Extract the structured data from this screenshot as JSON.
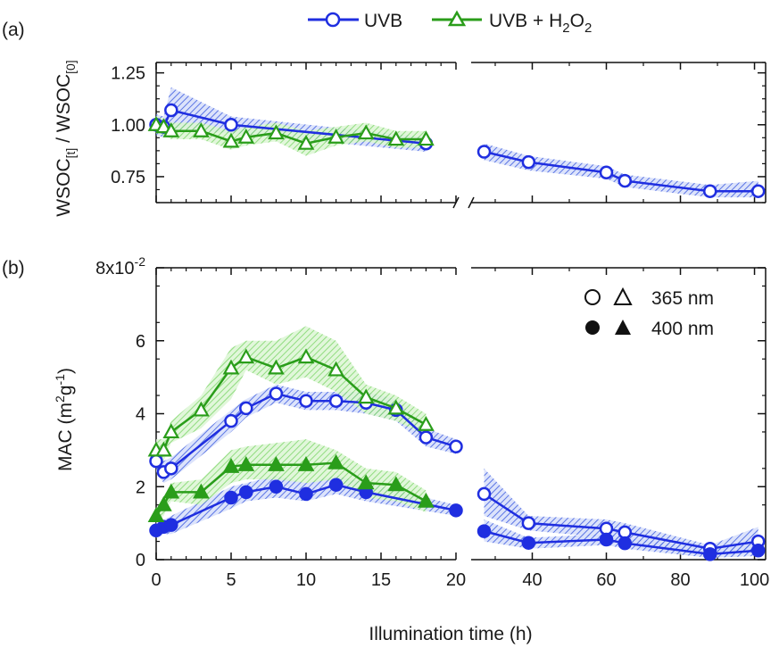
{
  "chart_data": [
    {
      "panel": "(a)",
      "type": "line",
      "ylabel": "WSOC[t] / WSOC[0]",
      "ylim": [
        0.625,
        1.3
      ],
      "yticks": [
        "0.75",
        "1.00",
        "1.25"
      ],
      "y_tick_values": [
        0.75,
        1.0,
        1.25
      ],
      "x_broken_axis": {
        "segment1": [
          0,
          20
        ],
        "segment2": [
          23.5,
          103
        ]
      },
      "series": [
        {
          "name": "UVB",
          "color": "#1f2ee0",
          "marker": "circle-open",
          "x": [
            0,
            0.5,
            1,
            5,
            18,
            27,
            39,
            60,
            65,
            88,
            101
          ],
          "y": [
            1.0,
            0.99,
            1.07,
            1.0,
            0.91,
            0.87,
            0.82,
            0.77,
            0.73,
            0.68,
            0.68
          ],
          "band": [
            [
              0.95,
              1.05
            ],
            [
              0.94,
              1.04
            ],
            [
              0.97,
              1.18
            ],
            [
              0.96,
              1.04
            ],
            [
              0.87,
              0.94
            ],
            [
              0.83,
              0.91
            ],
            [
              0.78,
              0.85
            ],
            [
              0.74,
              0.8
            ],
            [
              0.7,
              0.76
            ],
            [
              0.65,
              0.71
            ],
            [
              0.65,
              0.73
            ]
          ]
        },
        {
          "name": "UVB + H2O2",
          "color": "#2a9d1a",
          "marker": "triangle-open",
          "x": [
            0,
            0.5,
            1,
            3,
            5,
            6,
            8,
            10,
            12,
            14,
            16,
            18
          ],
          "y": [
            1.0,
            0.99,
            0.97,
            0.97,
            0.92,
            0.94,
            0.96,
            0.91,
            0.94,
            0.96,
            0.93,
            0.93
          ],
          "band": [
            [
              0.96,
              1.04
            ],
            [
              0.95,
              1.03
            ],
            [
              0.93,
              1.01
            ],
            [
              0.93,
              1.01
            ],
            [
              0.88,
              0.97
            ],
            [
              0.9,
              0.99
            ],
            [
              0.92,
              1.01
            ],
            [
              0.85,
              0.97
            ],
            [
              0.9,
              0.99
            ],
            [
              0.92,
              1.01
            ],
            [
              0.89,
              0.97
            ],
            [
              0.89,
              0.97
            ]
          ]
        }
      ]
    },
    {
      "panel": "(b)",
      "type": "line",
      "ylabel": "MAC (m2g-1)",
      "ylim": [
        0,
        0.08
      ],
      "yticks": [
        "0",
        "2",
        "4",
        "6",
        "8x10-2"
      ],
      "y_tick_values": [
        0,
        0.02,
        0.04,
        0.06,
        0.08
      ],
      "xlabel": "Illumination time (h)",
      "xticks": [
        "0",
        "5",
        "10",
        "15",
        "20",
        "40",
        "60",
        "80",
        "100"
      ],
      "x_tick_values": [
        0,
        5,
        10,
        15,
        20,
        40,
        60,
        80,
        100
      ],
      "legend_wavelengths": [
        "365 nm",
        "400 nm"
      ],
      "series": [
        {
          "name": "UVB 365 nm",
          "color": "#1f2ee0",
          "marker": "circle-open",
          "x": [
            0,
            0.5,
            1,
            5,
            6,
            8,
            10,
            12,
            14,
            16,
            18,
            20,
            27,
            39,
            60,
            65,
            88,
            101
          ],
          "y": [
            0.027,
            0.024,
            0.025,
            0.038,
            0.0415,
            0.0455,
            0.0435,
            0.0435,
            0.043,
            0.041,
            0.0335,
            0.031,
            0.018,
            0.01,
            0.0085,
            0.0075,
            0.003,
            0.005
          ],
          "band": [
            [
              0.024,
              0.03
            ],
            [
              0.021,
              0.027
            ],
            [
              0.022,
              0.028
            ],
            [
              0.035,
              0.041
            ],
            [
              0.039,
              0.044
            ],
            [
              0.043,
              0.048
            ],
            [
              0.041,
              0.046
            ],
            [
              0.041,
              0.046
            ],
            [
              0.04,
              0.046
            ],
            [
              0.038,
              0.044
            ],
            [
              0.031,
              0.036
            ],
            [
              0.029,
              0.033
            ],
            [
              0.012,
              0.025
            ],
            [
              0.008,
              0.012
            ],
            [
              0.006,
              0.011
            ],
            [
              0.005,
              0.01
            ],
            [
              0.001,
              0.004
            ],
            [
              0.002,
              0.009
            ]
          ]
        },
        {
          "name": "UVB 400 nm",
          "color": "#1f2ee0",
          "marker": "circle-filled",
          "x": [
            0,
            0.5,
            1,
            5,
            6,
            8,
            10,
            12,
            14,
            20,
            27,
            39,
            60,
            65,
            88,
            101
          ],
          "y": [
            0.008,
            0.009,
            0.0095,
            0.017,
            0.0185,
            0.02,
            0.018,
            0.0205,
            0.0185,
            0.0135,
            0.0078,
            0.0046,
            0.0055,
            0.0045,
            0.0015,
            0.0025
          ],
          "band": [
            [
              0.006,
              0.01
            ],
            [
              0.007,
              0.011
            ],
            [
              0.007,
              0.012
            ],
            [
              0.014,
              0.02
            ],
            [
              0.016,
              0.021
            ],
            [
              0.017,
              0.023
            ],
            [
              0.016,
              0.021
            ],
            [
              0.018,
              0.023
            ],
            [
              0.016,
              0.021
            ],
            [
              0.012,
              0.015
            ],
            [
              0.005,
              0.011
            ],
            [
              0.003,
              0.006
            ],
            [
              0.004,
              0.007
            ],
            [
              0.003,
              0.006
            ],
            [
              0.0005,
              0.003
            ],
            [
              0.001,
              0.006
            ]
          ]
        },
        {
          "name": "UVB + H2O2 365 nm",
          "color": "#2a9d1a",
          "marker": "triangle-open",
          "x": [
            0,
            0.5,
            1,
            3,
            5,
            6,
            8,
            10,
            12,
            14,
            16,
            18
          ],
          "y": [
            0.03,
            0.03,
            0.035,
            0.041,
            0.0525,
            0.0555,
            0.0525,
            0.0555,
            0.052,
            0.0445,
            0.0415,
            0.037
          ],
          "band": [
            [
              0.027,
              0.033
            ],
            [
              0.027,
              0.033
            ],
            [
              0.032,
              0.038
            ],
            [
              0.036,
              0.045
            ],
            [
              0.044,
              0.058
            ],
            [
              0.052,
              0.06
            ],
            [
              0.048,
              0.06
            ],
            [
              0.05,
              0.064
            ],
            [
              0.046,
              0.06
            ],
            [
              0.04,
              0.048
            ],
            [
              0.038,
              0.045
            ],
            [
              0.034,
              0.04
            ]
          ]
        },
        {
          "name": "UVB + H2O2 400 nm",
          "color": "#2a9d1a",
          "marker": "triangle-filled",
          "x": [
            0,
            0.5,
            1,
            3,
            5,
            6,
            8,
            10,
            12,
            14,
            16,
            18
          ],
          "y": [
            0.012,
            0.015,
            0.0185,
            0.0185,
            0.0255,
            0.026,
            0.026,
            0.026,
            0.0265,
            0.021,
            0.0205,
            0.016
          ],
          "band": [
            [
              0.01,
              0.014
            ],
            [
              0.012,
              0.017
            ],
            [
              0.016,
              0.021
            ],
            [
              0.015,
              0.022
            ],
            [
              0.021,
              0.03
            ],
            [
              0.022,
              0.031
            ],
            [
              0.022,
              0.032
            ],
            [
              0.021,
              0.033
            ],
            [
              0.022,
              0.03
            ],
            [
              0.017,
              0.025
            ],
            [
              0.016,
              0.024
            ],
            [
              0.013,
              0.019
            ]
          ]
        }
      ]
    }
  ],
  "panel_labels": {
    "a": "(a)",
    "b": "(b)"
  },
  "legend": {
    "uvb": "UVB",
    "uvb_h2o2_prefix": "UVB + H",
    "sub2": "2",
    "o": "O",
    "sub2b": "2"
  },
  "axis_text": {
    "a_ylabel_wsoc": "WSOC",
    "a_ylabel_t": "[t]",
    "a_ylabel_slash": " / WSOC",
    "a_ylabel_0": "[0]",
    "b_ylabel_mac": "MAC (m",
    "b_ylabel_2": "2",
    "b_ylabel_g": "g",
    "b_ylabel_m1": "-1",
    "b_ylabel_close": ")",
    "b_ytop_base": "8x10",
    "b_ytop_exp": "-2",
    "xlabel": "Illumination time (h)"
  },
  "colors": {
    "uvb": "#1f2ee0",
    "h2o2": "#2a9d1a",
    "uvb_band": "#5a7ae8",
    "h2o2_band": "#8ee07a"
  }
}
